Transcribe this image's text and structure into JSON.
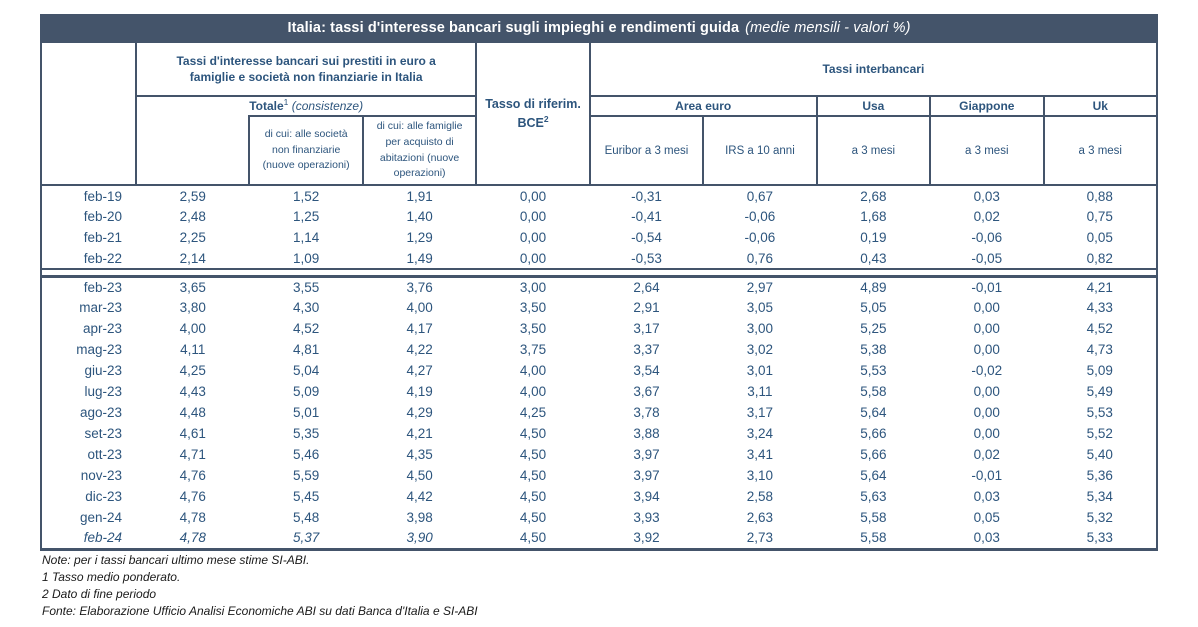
{
  "title": {
    "main": "Italia: tassi d'interesse bancari sugli impieghi e rendimenti guida",
    "sub": "(medie mensili - valori %)"
  },
  "header": {
    "bank_rates_group": "Tassi d'interesse bancari sui prestiti in euro a famiglie e società non finanziarie in Italia",
    "totale_label": "Totale",
    "totale_sup": "1",
    "totale_note": "(consistenze)",
    "subcol_societa": "di cui: alle società non finanziarie (nuove operazioni)",
    "subcol_famiglie": "di cui: alle famiglie per acquisto di abitazioni (nuove operazioni)",
    "bce_line1": "Tasso di riferim.",
    "bce_line2": "BCE",
    "bce_sup": "2",
    "interbank_group": "Tassi interbancari",
    "area_euro": "Area euro",
    "usa": "Usa",
    "giappone": "Giappone",
    "uk": "Uk",
    "euribor": "Euribor a 3 mesi",
    "irs": "IRS a 10 anni",
    "a3mesi": "a 3 mesi"
  },
  "table": {
    "block1": [
      {
        "label": "feb-19",
        "values": [
          "2,59",
          "1,52",
          "1,91",
          "0,00",
          "-0,31",
          "0,67",
          "2,68",
          "0,03",
          "0,88"
        ]
      },
      {
        "label": "feb-20",
        "values": [
          "2,48",
          "1,25",
          "1,40",
          "0,00",
          "-0,41",
          "-0,06",
          "1,68",
          "0,02",
          "0,75"
        ]
      },
      {
        "label": "feb-21",
        "values": [
          "2,25",
          "1,14",
          "1,29",
          "0,00",
          "-0,54",
          "-0,06",
          "0,19",
          "-0,06",
          "0,05"
        ]
      },
      {
        "label": "feb-22",
        "values": [
          "2,14",
          "1,09",
          "1,49",
          "0,00",
          "-0,53",
          "0,76",
          "0,43",
          "-0,05",
          "0,82"
        ]
      }
    ],
    "block2": [
      {
        "label": "feb-23",
        "values": [
          "3,65",
          "3,55",
          "3,76",
          "3,00",
          "2,64",
          "2,97",
          "4,89",
          "-0,01",
          "4,21"
        ]
      },
      {
        "label": "mar-23",
        "values": [
          "3,80",
          "4,30",
          "4,00",
          "3,50",
          "2,91",
          "3,05",
          "5,05",
          "0,00",
          "4,33"
        ]
      },
      {
        "label": "apr-23",
        "values": [
          "4,00",
          "4,52",
          "4,17",
          "3,50",
          "3,17",
          "3,00",
          "5,25",
          "0,00",
          "4,52"
        ]
      },
      {
        "label": "mag-23",
        "values": [
          "4,11",
          "4,81",
          "4,22",
          "3,75",
          "3,37",
          "3,02",
          "5,38",
          "0,00",
          "4,73"
        ]
      },
      {
        "label": "giu-23",
        "values": [
          "4,25",
          "5,04",
          "4,27",
          "4,00",
          "3,54",
          "3,01",
          "5,53",
          "-0,02",
          "5,09"
        ]
      },
      {
        "label": "lug-23",
        "values": [
          "4,43",
          "5,09",
          "4,19",
          "4,00",
          "3,67",
          "3,11",
          "5,58",
          "0,00",
          "5,49"
        ]
      },
      {
        "label": "ago-23",
        "values": [
          "4,48",
          "5,01",
          "4,29",
          "4,25",
          "3,78",
          "3,17",
          "5,64",
          "0,00",
          "5,53"
        ]
      },
      {
        "label": "set-23",
        "values": [
          "4,61",
          "5,35",
          "4,21",
          "4,50",
          "3,88",
          "3,24",
          "5,66",
          "0,00",
          "5,52"
        ]
      },
      {
        "label": "ott-23",
        "values": [
          "4,71",
          "5,46",
          "4,35",
          "4,50",
          "3,97",
          "3,41",
          "5,66",
          "0,02",
          "5,40"
        ]
      },
      {
        "label": "nov-23",
        "values": [
          "4,76",
          "5,59",
          "4,50",
          "4,50",
          "3,97",
          "3,10",
          "5,64",
          "-0,01",
          "5,36"
        ]
      },
      {
        "label": "dic-23",
        "values": [
          "4,76",
          "5,45",
          "4,42",
          "4,50",
          "3,94",
          "2,58",
          "5,63",
          "0,03",
          "5,34"
        ]
      },
      {
        "label": "gen-24",
        "values": [
          "4,78",
          "5,48",
          "3,98",
          "4,50",
          "3,93",
          "2,63",
          "5,58",
          "0,05",
          "5,32"
        ]
      },
      {
        "label": "feb-24",
        "italic": true,
        "italic_cols": [
          0,
          1,
          2
        ],
        "values": [
          "4,78",
          "5,37",
          "3,90",
          "4,50",
          "3,92",
          "2,73",
          "5,58",
          "0,03",
          "5,33"
        ]
      }
    ]
  },
  "notes": [
    "Note: per i tassi bancari ultimo mese stime SI-ABI.",
    "1 Tasso medio ponderato.",
    "2 Dato di fine periodo",
    "Fonte: Elaborazione Ufficio Analisi Economiche ABI su dati Banca d'Italia e SI-ABI"
  ],
  "colors": {
    "title_bar_bg": "#44546A",
    "border": "#44546A",
    "table_text": "#2D557D",
    "note_text": "#1a1a1a"
  }
}
